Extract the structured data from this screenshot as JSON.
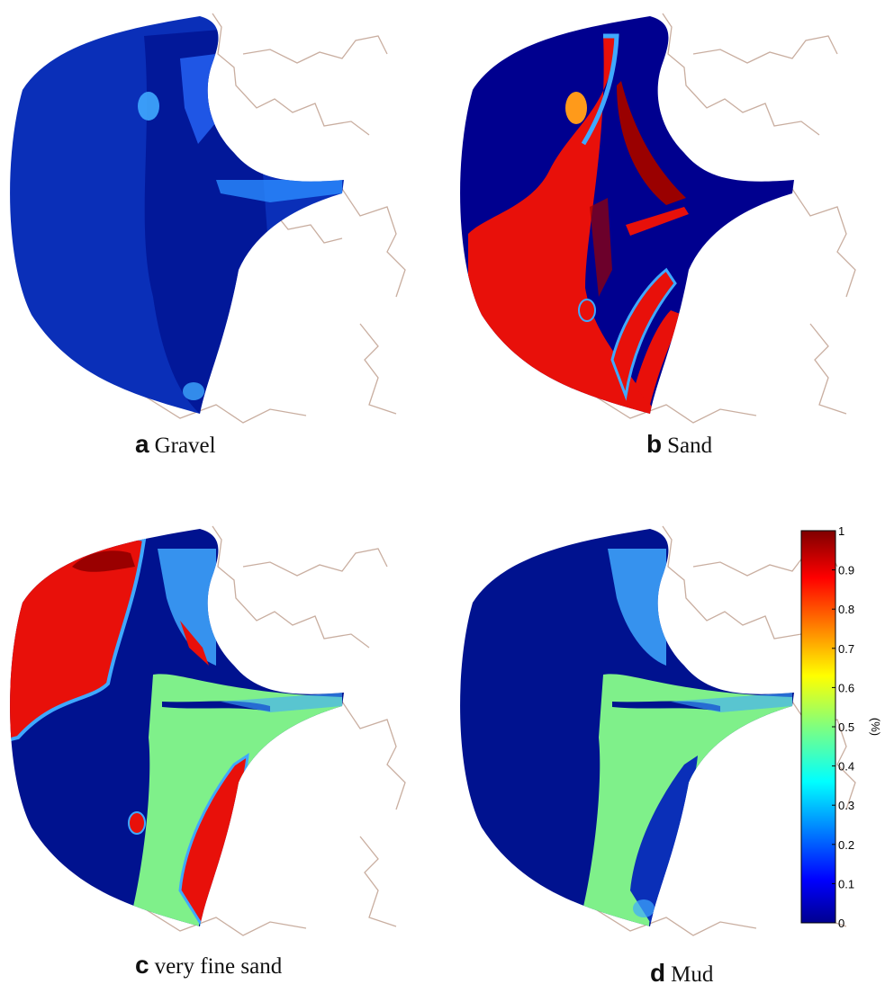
{
  "panels": [
    {
      "id": "a",
      "letter": "a",
      "label": "Gravel"
    },
    {
      "id": "b",
      "letter": "b",
      "label": "Sand"
    },
    {
      "id": "c",
      "letter": "c",
      "label": "very fine sand"
    },
    {
      "id": "d",
      "letter": "d",
      "label": "Mud"
    }
  ],
  "colorbar": {
    "label": "(%)",
    "ticks": [
      "1",
      "0.9",
      "0.8",
      "0.7",
      "0.6",
      "0.5",
      "0.4",
      "0.3",
      "0.2",
      "0.1",
      "0"
    ],
    "colormap": "jet",
    "min": 0,
    "max": 1
  },
  "colors": {
    "deep_blue": "#00008f",
    "blue": "#0a2fb8",
    "light_blue": "#3fa9ff",
    "green": "#7ff08a",
    "red": "#e8100a",
    "dark_red": "#9a0000",
    "orange": "#ff9a1a",
    "coast": "#c9aea0"
  }
}
